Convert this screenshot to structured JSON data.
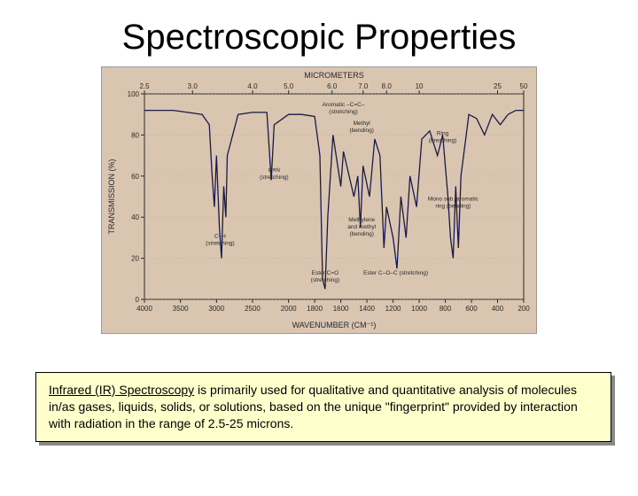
{
  "title": "Spectroscopic Properties",
  "caption": {
    "lead_underlined": "Infrared (IR) Spectroscopy",
    "rest": " is primarily used for qualitative and quantitative analysis of molecules in/as gases, liquids, solids, or solutions, based on the unique \"fingerprint\" provided by interaction with radiation in the range of 2.5-25 microns."
  },
  "chart": {
    "type": "line",
    "background_color": "#d9c5b0",
    "plot_bg": "#d9c5b0",
    "line_color": "#1a1a4a",
    "line_width": 1.3,
    "axis_color": "#2a2a2a",
    "grid_color": "#999999",
    "title_top": "MICROMETERS",
    "title_top_fontsize": 9,
    "xlabel": "WAVENUMBER (CM⁻¹)",
    "xlabel_fontsize": 9,
    "ylabel": "TRANSMISSION (%)",
    "ylabel_fontsize": 9,
    "tick_fontsize": 8,
    "ylim": [
      0,
      100
    ],
    "yticks": [
      0,
      20,
      40,
      60,
      80,
      100
    ],
    "x_wavenumber_ticks": [
      4000,
      3500,
      3000,
      2500,
      2000,
      1800,
      1600,
      1400,
      1200,
      1000,
      800,
      600,
      400,
      200
    ],
    "x_micrometer_ticks": [
      "2.5",
      "3.0",
      "4.0",
      "5.0",
      "6.0",
      "7.0",
      "8.0",
      "10",
      "25",
      "50"
    ],
    "x_micrometer_positions_wn": [
      4000,
      3333,
      2500,
      2000,
      1667,
      1429,
      1250,
      1000,
      400,
      200
    ],
    "annotations": [
      {
        "label": "C≡N\n(stretching)",
        "wn": 2200,
        "y": 62
      },
      {
        "label": "C–H\n(stretching)",
        "wn": 2950,
        "y": 30
      },
      {
        "label": "Aromatic –C=C–\n(stretching)",
        "wn": 1580,
        "y": 94
      },
      {
        "label": "Methyl\n(bending)",
        "wn": 1440,
        "y": 85
      },
      {
        "label": "Methylene\nand methyl\n(bending)",
        "wn": 1440,
        "y": 38
      },
      {
        "label": "Ester C=O\n(stretching)",
        "wn": 1720,
        "y": 12
      },
      {
        "label": "Ring\n(breathing)",
        "wn": 820,
        "y": 80
      },
      {
        "label": "Mono sub. aromatic\nring (bending)",
        "wn": 740,
        "y": 48
      },
      {
        "label": "Ester C–O–C (stretching)",
        "wn": 1180,
        "y": 12
      }
    ],
    "spectrum": [
      [
        4000,
        92
      ],
      [
        3800,
        92
      ],
      [
        3600,
        92
      ],
      [
        3400,
        91
      ],
      [
        3200,
        90
      ],
      [
        3100,
        85
      ],
      [
        3060,
        60
      ],
      [
        3030,
        45
      ],
      [
        3000,
        70
      ],
      [
        2960,
        35
      ],
      [
        2930,
        20
      ],
      [
        2900,
        55
      ],
      [
        2870,
        40
      ],
      [
        2850,
        70
      ],
      [
        2700,
        90
      ],
      [
        2500,
        91
      ],
      [
        2300,
        91
      ],
      [
        2240,
        58
      ],
      [
        2200,
        85
      ],
      [
        2000,
        90
      ],
      [
        1900,
        90
      ],
      [
        1800,
        89
      ],
      [
        1760,
        70
      ],
      [
        1740,
        10
      ],
      [
        1720,
        5
      ],
      [
        1700,
        40
      ],
      [
        1660,
        80
      ],
      [
        1600,
        55
      ],
      [
        1580,
        72
      ],
      [
        1500,
        50
      ],
      [
        1470,
        60
      ],
      [
        1450,
        35
      ],
      [
        1430,
        65
      ],
      [
        1380,
        50
      ],
      [
        1340,
        78
      ],
      [
        1300,
        70
      ],
      [
        1270,
        25
      ],
      [
        1250,
        45
      ],
      [
        1200,
        30
      ],
      [
        1170,
        15
      ],
      [
        1140,
        50
      ],
      [
        1100,
        30
      ],
      [
        1070,
        60
      ],
      [
        1020,
        45
      ],
      [
        980,
        78
      ],
      [
        920,
        82
      ],
      [
        860,
        70
      ],
      [
        820,
        80
      ],
      [
        780,
        50
      ],
      [
        760,
        30
      ],
      [
        740,
        20
      ],
      [
        720,
        55
      ],
      [
        700,
        25
      ],
      [
        680,
        60
      ],
      [
        620,
        90
      ],
      [
        560,
        88
      ],
      [
        500,
        80
      ],
      [
        440,
        90
      ],
      [
        380,
        85
      ],
      [
        320,
        90
      ],
      [
        260,
        92
      ],
      [
        200,
        92
      ]
    ]
  }
}
